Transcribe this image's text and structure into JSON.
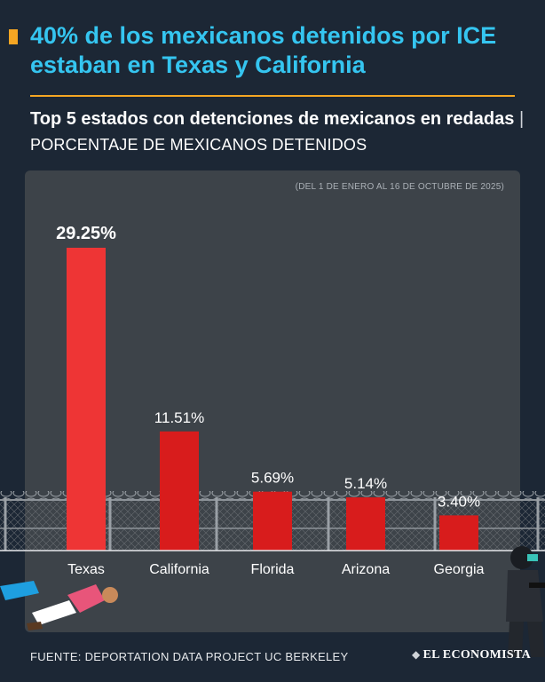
{
  "headline": "40% de los mexicanos detenidos por ICE estaban en Texas y California",
  "subtitle": {
    "bold": "Top 5 estados con detenciones de mexicanos en redadas",
    "separator": "|",
    "unit": "PORCENTAJE DE MEXICANOS DETENIDOS"
  },
  "period": "(DEL 1 DE ENERO AL 16 DE OCTUBRE DE 2025)",
  "source": "FUENTE: DEPORTATION DATA PROJECT UC BERKELEY",
  "brand": "EL ECONOMISTA",
  "colors": {
    "background": "#1c2735",
    "panel": "#3d4349",
    "headline": "#35c5f0",
    "accent": "#f5a623",
    "bar_top": "#ee3535",
    "bar": "#d81c1c"
  },
  "chart_data": {
    "type": "bar",
    "title": "Top 5 estados con detenciones de mexicanos en redadas",
    "ylabel": "Porcentaje de mexicanos detenidos",
    "xlabel": "",
    "categories": [
      "Texas",
      "California",
      "Florida",
      "Arizona",
      "Georgia"
    ],
    "values": [
      29.25,
      11.51,
      5.69,
      5.14,
      3.4
    ],
    "labels": [
      "29.25%",
      "11.51%",
      "5.69%",
      "5.14%",
      "3.40%"
    ],
    "ylim": [
      0,
      30
    ],
    "grid": false,
    "legend": "none"
  }
}
